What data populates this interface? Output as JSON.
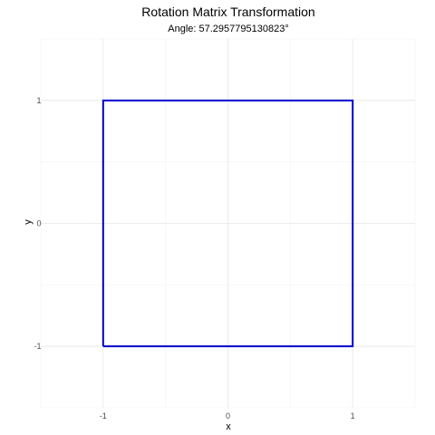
{
  "chart_data": {
    "type": "line",
    "title": "Rotation Matrix Transformation",
    "subtitle": "Angle: 57.2957795130823°",
    "xlabel": "x",
    "ylabel": "y",
    "xlim": [
      -1.5,
      1.5
    ],
    "ylim": [
      -1.5,
      1.5
    ],
    "x_ticks": [
      -1,
      0,
      1
    ],
    "y_ticks": [
      -1,
      0,
      1
    ],
    "x_tick_labels": [
      "-1",
      "0",
      "1"
    ],
    "y_tick_labels": [
      "-1",
      "0",
      "1"
    ],
    "grid": true,
    "legend": "none",
    "series": [
      {
        "color": "#0000cc",
        "points": [
          {
            "x": -1,
            "y": -1
          },
          {
            "x": 1,
            "y": -1
          },
          {
            "x": 1,
            "y": 1
          },
          {
            "x": -1,
            "y": 1
          },
          {
            "x": -1,
            "y": -1
          }
        ]
      }
    ]
  }
}
